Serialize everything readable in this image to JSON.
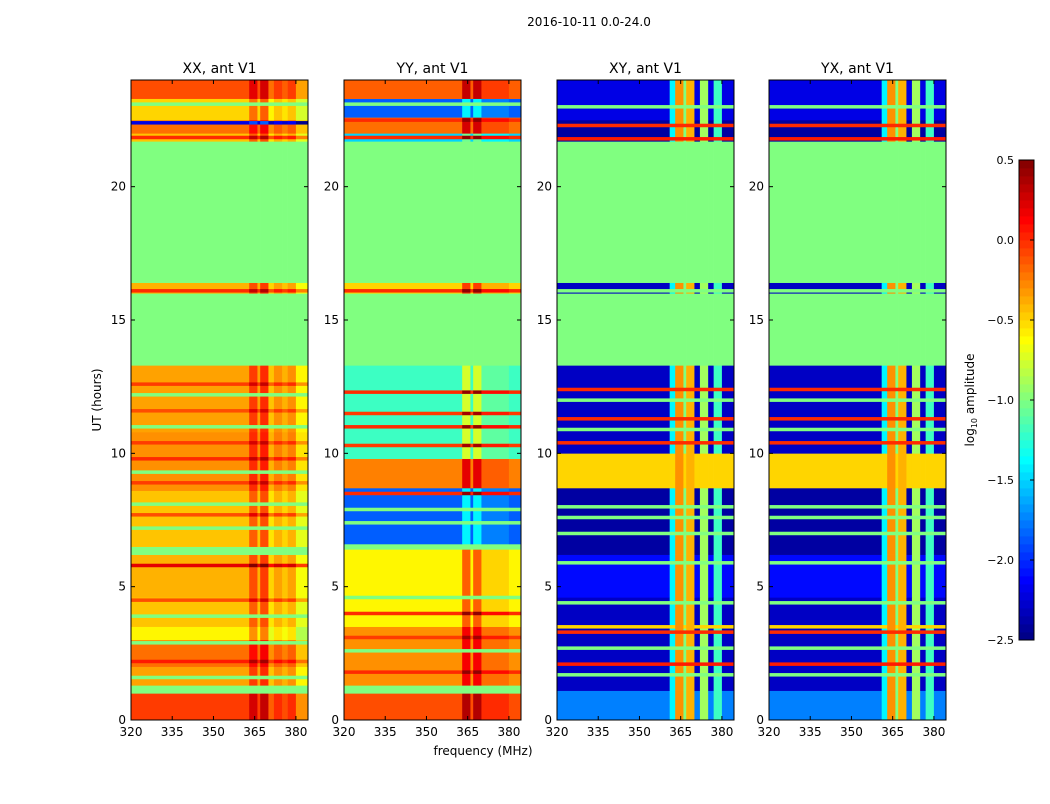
{
  "chart_data": {
    "type": "heatmap",
    "title": "2016-10-11 0.0-24.0",
    "xlabel": "frequency (MHz)",
    "ylabel": "UT (hours)",
    "xlim": [
      320,
      384.4
    ],
    "ylim": [
      0,
      24
    ],
    "xticks": [
      "320",
      "335",
      "350",
      "365",
      "380"
    ],
    "xtick_values": [
      320,
      335,
      350,
      365,
      380
    ],
    "yticks": [
      "0",
      "5",
      "10",
      "15",
      "20"
    ],
    "ytick_values": [
      0,
      5,
      10,
      15,
      20
    ],
    "colorbar": {
      "label": "log10 amplitude",
      "label_main": "log",
      "label_sub": "10",
      "label_rest": " amplitude",
      "vmin": -2.5,
      "vmax": 0.5,
      "ticks": [
        "0.5",
        "0.0",
        "−0.5",
        "−1.0",
        "−1.5",
        "−2.0",
        "−2.5"
      ],
      "tick_values": [
        0.5,
        0.0,
        -0.5,
        -1.0,
        -1.5,
        -2.0,
        -2.5
      ],
      "colormap": "jet"
    },
    "flag_value": -1.0,
    "panels": [
      {
        "title": "XX, ant V1",
        "segments": [
          [
            0,
            1,
            -0.05
          ],
          [
            1,
            1.3,
            -1.0
          ],
          [
            1.3,
            2,
            -0.35
          ],
          [
            2,
            3,
            -0.2
          ],
          [
            3,
            3.5,
            -0.6
          ],
          [
            3.5,
            4.6,
            -0.45
          ],
          [
            4.6,
            6.2,
            -0.4
          ],
          [
            6.2,
            6.5,
            -1.0
          ],
          [
            6.5,
            8.6,
            -0.45
          ],
          [
            8.6,
            10.8,
            -0.3
          ],
          [
            10.8,
            13.3,
            -0.35
          ],
          [
            13.3,
            16,
            -1.0
          ],
          [
            16,
            16.4,
            -0.4
          ],
          [
            16.4,
            21.7,
            -1.0
          ],
          [
            21.7,
            22,
            -0.45
          ],
          [
            22,
            22.5,
            -0.2
          ],
          [
            22.5,
            23.3,
            -0.5
          ],
          [
            23.3,
            24,
            -0.1
          ]
        ],
        "columns": [
          [
            363,
            366,
            "add",
            0.3
          ],
          [
            367,
            370,
            "add",
            0.35
          ],
          [
            370,
            372,
            "add",
            -0.1
          ],
          [
            372,
            375,
            "add",
            0.05
          ],
          [
            375,
            377,
            "add",
            -0.05
          ],
          [
            377,
            380,
            "add",
            0.05
          ],
          [
            380,
            384.4,
            "add",
            -0.25
          ]
        ],
        "lines": [
          [
            1.6,
            -1.0
          ],
          [
            2.2,
            0.05
          ],
          [
            2.9,
            -1.0
          ],
          [
            3.9,
            -1.0
          ],
          [
            4.5,
            -0.1
          ],
          [
            5.8,
            0.2
          ],
          [
            7.2,
            -1.0
          ],
          [
            7.7,
            -0.1
          ],
          [
            8.1,
            -1.0
          ],
          [
            8.9,
            -0.05
          ],
          [
            9.3,
            -1.0
          ],
          [
            9.8,
            0.0
          ],
          [
            10.4,
            -0.05
          ],
          [
            11.0,
            -1.0
          ],
          [
            11.6,
            -0.1
          ],
          [
            12.2,
            -1.0
          ],
          [
            12.6,
            -0.05
          ],
          [
            16.1,
            0.0
          ],
          [
            21.85,
            0.0
          ],
          [
            22.4,
            -2.2
          ],
          [
            23.1,
            -1.0
          ]
        ]
      },
      {
        "title": "YY, ant V1",
        "segments": [
          [
            0,
            1,
            -0.1
          ],
          [
            1,
            1.3,
            -1.0
          ],
          [
            1.3,
            3.5,
            -0.3
          ],
          [
            3.5,
            6.4,
            -0.6
          ],
          [
            6.4,
            6.6,
            -1.0
          ],
          [
            6.6,
            8.7,
            -1.85
          ],
          [
            8.7,
            9.8,
            -0.25
          ],
          [
            9.8,
            13.3,
            -1.2
          ],
          [
            13.3,
            16,
            -1.0
          ],
          [
            16,
            16.4,
            -0.5
          ],
          [
            16.4,
            21.7,
            -1.0
          ],
          [
            21.7,
            22,
            -1.5
          ],
          [
            22,
            22.6,
            -0.2
          ],
          [
            22.6,
            23.3,
            -1.85
          ],
          [
            23.3,
            24,
            -0.15
          ]
        ],
        "columns": [
          [
            363,
            366,
            "add",
            0.45
          ],
          [
            367,
            370,
            "add",
            0.45
          ],
          [
            370,
            372,
            "add",
            0.1
          ],
          [
            372,
            380,
            "add",
            0.1
          ]
        ],
        "lines": [
          [
            1.8,
            0.0
          ],
          [
            2.6,
            -1.0
          ],
          [
            3.1,
            -0.05
          ],
          [
            4.0,
            0.0
          ],
          [
            4.6,
            -1.0
          ],
          [
            7.4,
            -1.0
          ],
          [
            7.9,
            -1.0
          ],
          [
            8.5,
            0.0
          ],
          [
            10.3,
            -0.05
          ],
          [
            11.0,
            0.0
          ],
          [
            11.5,
            -0.05
          ],
          [
            12.3,
            0.0
          ],
          [
            16.1,
            0.0
          ],
          [
            21.85,
            0.0
          ],
          [
            22.5,
            0.0
          ],
          [
            23.1,
            -1.0
          ]
        ]
      },
      {
        "title": "XY, ant V1",
        "segments": [
          [
            0,
            1.1,
            -1.75
          ],
          [
            1.1,
            3.6,
            -2.3
          ],
          [
            3.6,
            4.6,
            -2.3
          ],
          [
            4.6,
            6.2,
            -2.1
          ],
          [
            6.2,
            8.7,
            -2.4
          ],
          [
            8.7,
            10.0,
            -0.5
          ],
          [
            10.0,
            13.3,
            -2.3
          ],
          [
            13.3,
            16,
            -1.0
          ],
          [
            16,
            16.4,
            -2.3
          ],
          [
            16.4,
            21.7,
            -1.0
          ],
          [
            21.7,
            22.5,
            -2.4
          ],
          [
            22.5,
            24,
            -2.2
          ]
        ],
        "columns": [
          [
            361,
            363,
            "max",
            -1.4
          ],
          [
            363,
            366,
            "max",
            -0.3
          ],
          [
            366,
            367,
            "max",
            -1.0
          ],
          [
            367,
            370,
            "max",
            -0.4
          ],
          [
            372,
            375,
            "max",
            -0.9
          ],
          [
            377,
            380,
            "max",
            -1.2
          ]
        ],
        "lines": [
          [
            1.7,
            -1.0
          ],
          [
            2.1,
            0.05
          ],
          [
            2.7,
            -1.0
          ],
          [
            3.3,
            0.0
          ],
          [
            3.5,
            -0.5
          ],
          [
            4.4,
            -1.0
          ],
          [
            5.9,
            -1.0
          ],
          [
            7.0,
            -1.0
          ],
          [
            7.6,
            -1.0
          ],
          [
            8.0,
            -1.0
          ],
          [
            10.4,
            0.0
          ],
          [
            10.9,
            -1.0
          ],
          [
            11.3,
            0.0
          ],
          [
            12.0,
            -1.0
          ],
          [
            12.4,
            0.0
          ],
          [
            16.1,
            -1.0
          ],
          [
            21.8,
            0.05
          ],
          [
            22.3,
            0.0
          ],
          [
            23.0,
            -1.0
          ]
        ]
      },
      {
        "title": "YX, ant V1",
        "segments": [
          [
            0,
            1.1,
            -1.75
          ],
          [
            1.1,
            3.6,
            -2.3
          ],
          [
            3.6,
            4.6,
            -2.3
          ],
          [
            4.6,
            6.2,
            -2.1
          ],
          [
            6.2,
            8.7,
            -2.4
          ],
          [
            8.7,
            10.0,
            -0.5
          ],
          [
            10.0,
            13.3,
            -2.3
          ],
          [
            13.3,
            16,
            -1.0
          ],
          [
            16,
            16.4,
            -2.3
          ],
          [
            16.4,
            21.7,
            -1.0
          ],
          [
            21.7,
            22.5,
            -2.4
          ],
          [
            22.5,
            24,
            -2.2
          ]
        ],
        "columns": [
          [
            361,
            363,
            "max",
            -1.4
          ],
          [
            363,
            366,
            "max",
            -0.3
          ],
          [
            366,
            367,
            "max",
            -1.0
          ],
          [
            367,
            370,
            "max",
            -0.4
          ],
          [
            372,
            375,
            "max",
            -0.9
          ],
          [
            377,
            380,
            "max",
            -1.2
          ]
        ],
        "lines": [
          [
            1.7,
            -1.0
          ],
          [
            2.1,
            0.05
          ],
          [
            2.7,
            -1.0
          ],
          [
            3.3,
            0.0
          ],
          [
            3.5,
            -0.5
          ],
          [
            4.4,
            -1.0
          ],
          [
            5.9,
            -1.0
          ],
          [
            7.0,
            -1.0
          ],
          [
            7.6,
            -1.0
          ],
          [
            8.0,
            -1.0
          ],
          [
            10.4,
            0.0
          ],
          [
            10.9,
            -1.0
          ],
          [
            11.3,
            0.0
          ],
          [
            12.0,
            -1.0
          ],
          [
            12.4,
            0.0
          ],
          [
            16.1,
            -1.0
          ],
          [
            21.8,
            0.05
          ],
          [
            22.3,
            0.0
          ],
          [
            23.0,
            -1.0
          ]
        ]
      }
    ]
  }
}
